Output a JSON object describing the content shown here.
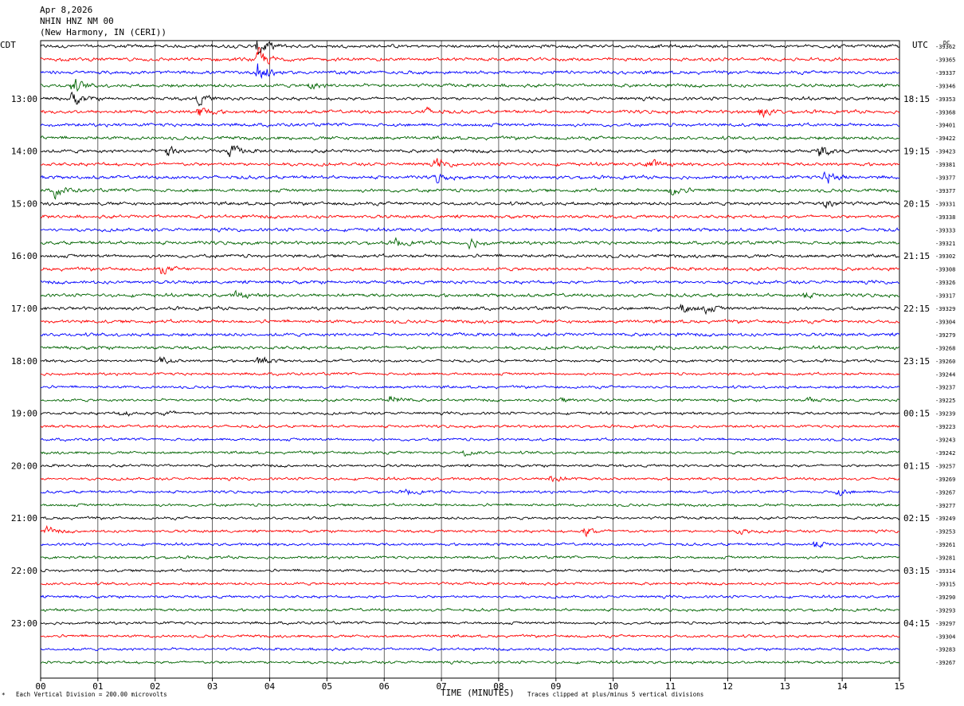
{
  "header": {
    "date": "Apr 8,2026",
    "station": "NHIN HNZ NM 00",
    "location": "(New Harmony, IN (CERI))"
  },
  "left_zone": "CDT",
  "right_zone": "UTC",
  "offset_header": "DC",
  "footer": {
    "left_note": "Each Vertical Division =  200.00 microvolts",
    "xlabel": "TIME (MINUTES)",
    "right_note": "Traces clipped at plus/minus 5 vertical divisions"
  },
  "chart_data": {
    "type": "line",
    "title": "",
    "xlabel": "TIME (MINUTES)",
    "ylabel": "",
    "xlim": [
      0,
      15
    ],
    "x_ticks": [
      "00",
      "01",
      "02",
      "03",
      "04",
      "05",
      "06",
      "07",
      "08",
      "09",
      "10",
      "11",
      "12",
      "13",
      "14",
      "15"
    ],
    "left_hour_labels": [
      "13:00",
      "14:00",
      "15:00",
      "16:00",
      "17:00",
      "18:00",
      "19:00",
      "20:00",
      "21:00",
      "22:00",
      "23:00"
    ],
    "right_hour_labels": [
      "18:15",
      "19:15",
      "20:15",
      "21:15",
      "22:15",
      "23:15",
      "00:15",
      "01:15",
      "02:15",
      "03:15",
      "04:15"
    ],
    "trace_colors": [
      "#000000",
      "#ff0000",
      "#0000ff",
      "#006400"
    ],
    "trace_minutes": 15,
    "trace_offsets": [
      -39362,
      -39365,
      -39337,
      -39346,
      -39353,
      -39368,
      -39401,
      -39422,
      -39423,
      -39381,
      -39377,
      -39377,
      -39331,
      -39338,
      -39333,
      -39321,
      -39302,
      -39308,
      -39326,
      -39317,
      -39329,
      -39304,
      -39279,
      -39268,
      -39260,
      -39244,
      -39237,
      -39225,
      -39239,
      -39223,
      -39243,
      -39242,
      -39257,
      -39269,
      -39267,
      -39277,
      -39249,
      -39253,
      -39261,
      -39281,
      -39314,
      -39315,
      -39290,
      -39293,
      -39297,
      -39304,
      -39283,
      -39267
    ],
    "events": [
      {
        "trace": 0,
        "minute": 3.8,
        "amplitude": 4.5
      },
      {
        "trace": 1,
        "minute": 3.8,
        "amplitude": 4.5
      },
      {
        "trace": 2,
        "minute": 3.8,
        "amplitude": 5.0
      },
      {
        "trace": 3,
        "minute": 0.55,
        "amplitude": 3.0
      },
      {
        "trace": 4,
        "minute": 0.55,
        "amplitude": 3.0
      },
      {
        "trace": 3,
        "minute": 4.7,
        "amplitude": 1.5
      },
      {
        "trace": 4,
        "minute": 2.75,
        "amplitude": 2.0
      },
      {
        "trace": 5,
        "minute": 2.75,
        "amplitude": 2.5
      },
      {
        "trace": 5,
        "minute": 12.55,
        "amplitude": 2.5
      },
      {
        "trace": 5,
        "minute": 6.7,
        "amplitude": 1.5
      },
      {
        "trace": 8,
        "minute": 2.2,
        "amplitude": 2.5
      },
      {
        "trace": 8,
        "minute": 3.3,
        "amplitude": 2.5
      },
      {
        "trace": 8,
        "minute": 13.6,
        "amplitude": 2.5
      },
      {
        "trace": 9,
        "minute": 10.6,
        "amplitude": 2.5
      },
      {
        "trace": 9,
        "minute": 6.9,
        "amplitude": 2.0
      },
      {
        "trace": 10,
        "minute": 6.9,
        "amplitude": 2.0
      },
      {
        "trace": 10,
        "minute": 13.7,
        "amplitude": 3.5
      },
      {
        "trace": 11,
        "minute": 0.25,
        "amplitude": 2.5
      },
      {
        "trace": 11,
        "minute": 11.0,
        "amplitude": 2.5
      },
      {
        "trace": 12,
        "minute": 13.7,
        "amplitude": 2.5
      },
      {
        "trace": 15,
        "minute": 7.5,
        "amplitude": 2.0
      },
      {
        "trace": 15,
        "minute": 6.2,
        "amplitude": 1.5
      },
      {
        "trace": 17,
        "minute": 2.1,
        "amplitude": 1.5
      },
      {
        "trace": 19,
        "minute": 3.4,
        "amplitude": 1.5
      },
      {
        "trace": 19,
        "minute": 13.3,
        "amplitude": 1.2
      },
      {
        "trace": 20,
        "minute": 11.2,
        "amplitude": 2.0
      },
      {
        "trace": 20,
        "minute": 11.6,
        "amplitude": 1.5
      },
      {
        "trace": 24,
        "minute": 3.8,
        "amplitude": 1.8
      },
      {
        "trace": 24,
        "minute": 2.1,
        "amplitude": 1.5
      },
      {
        "trace": 27,
        "minute": 6.1,
        "amplitude": 2.0
      },
      {
        "trace": 27,
        "minute": 9.1,
        "amplitude": 1.0
      },
      {
        "trace": 27,
        "minute": 13.4,
        "amplitude": 1.0
      },
      {
        "trace": 28,
        "minute": 1.4,
        "amplitude": 1.2
      },
      {
        "trace": 28,
        "minute": 2.15,
        "amplitude": 1.2
      },
      {
        "trace": 31,
        "minute": 7.4,
        "amplitude": 1.0
      },
      {
        "trace": 33,
        "minute": 8.9,
        "amplitude": 1.8
      },
      {
        "trace": 34,
        "minute": 6.4,
        "amplitude": 1.0
      },
      {
        "trace": 34,
        "minute": 13.9,
        "amplitude": 1.5
      },
      {
        "trace": 37,
        "minute": 0.1,
        "amplitude": 1.5
      },
      {
        "trace": 37,
        "minute": 9.5,
        "amplitude": 2.0
      },
      {
        "trace": 37,
        "minute": 12.2,
        "amplitude": 1.2
      },
      {
        "trace": 38,
        "minute": 13.5,
        "amplitude": 1.5
      }
    ]
  }
}
